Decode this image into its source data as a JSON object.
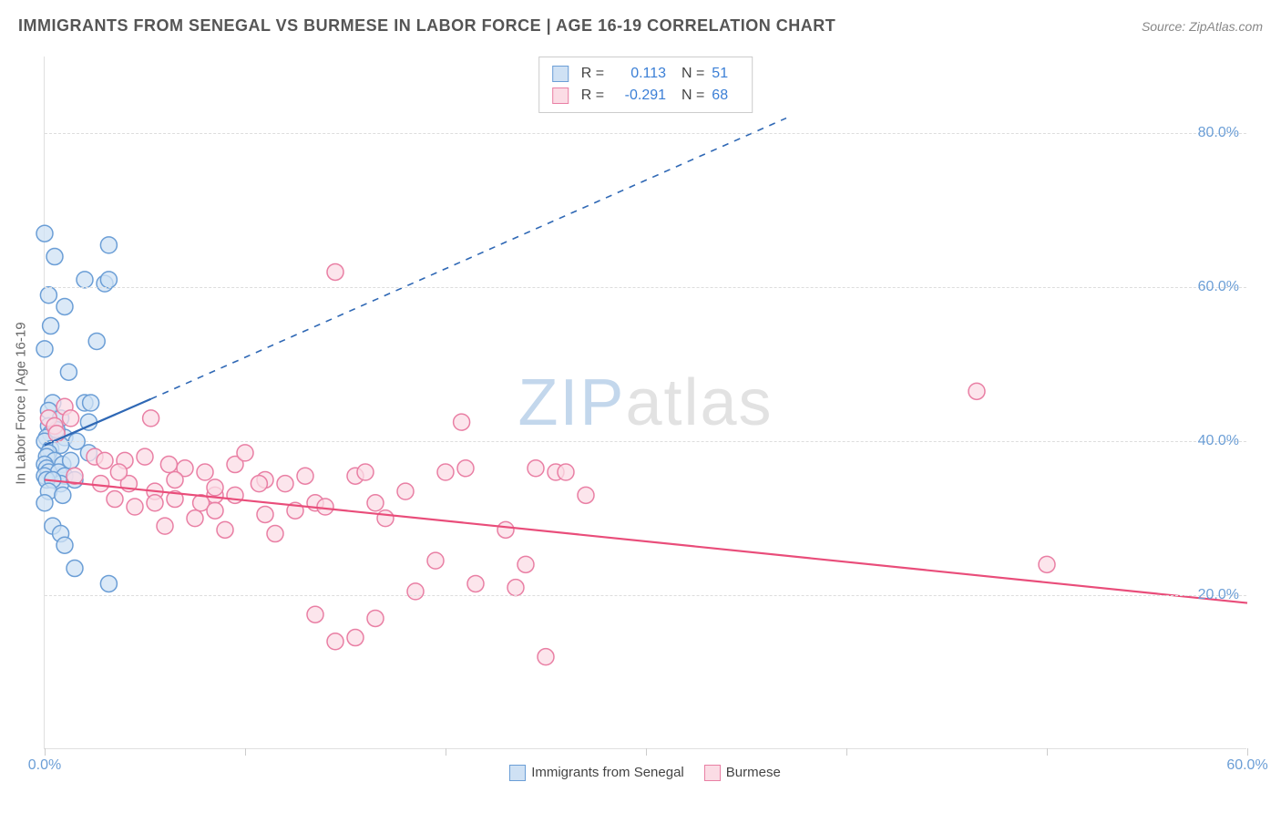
{
  "title": "IMMIGRANTS FROM SENEGAL VS BURMESE IN LABOR FORCE | AGE 16-19 CORRELATION CHART",
  "source": "Source: ZipAtlas.com",
  "ylabel": "In Labor Force | Age 16-19",
  "watermark": {
    "zip": "ZIP",
    "atlas": "atlas"
  },
  "chart": {
    "type": "scatter",
    "xlim": [
      0,
      60
    ],
    "ylim": [
      0,
      90
    ],
    "yticks": [
      20,
      40,
      60,
      80
    ],
    "ytick_labels": [
      "20.0%",
      "40.0%",
      "60.0%",
      "80.0%"
    ],
    "xticks": [
      0,
      10,
      20,
      30,
      40,
      50,
      60
    ],
    "xtick_labels": [
      "0.0%",
      "",
      "",
      "",
      "",
      "",
      "60.0%"
    ],
    "grid_color": "#dddddd",
    "axis_color": "#e0e0e0",
    "background_color": "#ffffff",
    "marker_radius": 9,
    "marker_stroke_width": 1.5,
    "series": [
      {
        "name": "Immigrants from Senegal",
        "fill_color": "#cfe1f4",
        "stroke_color": "#6b9ed6",
        "line_color": "#2f68b5",
        "line_width": 2.2,
        "R": "0.113",
        "N": "51",
        "regression": {
          "x1": 0,
          "y1": 39.5,
          "x2": 5.3,
          "y2": 45.5,
          "ext_x2": 37,
          "ext_y2": 82
        },
        "points": [
          [
            0.0,
            67.0
          ],
          [
            0.5,
            64.0
          ],
          [
            3.2,
            65.5
          ],
          [
            2.0,
            61.0
          ],
          [
            3.0,
            60.5
          ],
          [
            0.2,
            59.0
          ],
          [
            1.0,
            57.5
          ],
          [
            3.2,
            61.0
          ],
          [
            0.3,
            55.0
          ],
          [
            0.0,
            52.0
          ],
          [
            2.6,
            53.0
          ],
          [
            1.2,
            49.0
          ],
          [
            2.0,
            45.0
          ],
          [
            0.4,
            45.0
          ],
          [
            2.3,
            45.0
          ],
          [
            0.2,
            44.0
          ],
          [
            2.2,
            42.5
          ],
          [
            0.8,
            43.0
          ],
          [
            0.2,
            42.0
          ],
          [
            0.3,
            41.0
          ],
          [
            0.1,
            40.5
          ],
          [
            1.0,
            40.5
          ],
          [
            0.0,
            40.0
          ],
          [
            0.6,
            41.5
          ],
          [
            1.6,
            40.0
          ],
          [
            0.3,
            39.0
          ],
          [
            0.8,
            39.5
          ],
          [
            0.2,
            38.5
          ],
          [
            2.2,
            38.5
          ],
          [
            0.1,
            38.0
          ],
          [
            0.5,
            37.5
          ],
          [
            0.0,
            37.0
          ],
          [
            0.9,
            37.0
          ],
          [
            0.1,
            36.5
          ],
          [
            1.3,
            37.5
          ],
          [
            0.2,
            36.0
          ],
          [
            0.7,
            36.0
          ],
          [
            0.0,
            35.5
          ],
          [
            1.0,
            35.5
          ],
          [
            0.8,
            34.5
          ],
          [
            0.1,
            35.0
          ],
          [
            0.4,
            35.0
          ],
          [
            1.5,
            35.0
          ],
          [
            0.2,
            33.5
          ],
          [
            0.9,
            33.0
          ],
          [
            0.0,
            32.0
          ],
          [
            0.4,
            29.0
          ],
          [
            0.8,
            28.0
          ],
          [
            1.0,
            26.5
          ],
          [
            1.5,
            23.5
          ],
          [
            3.2,
            21.5
          ]
        ]
      },
      {
        "name": "Burmese",
        "fill_color": "#fbdce5",
        "stroke_color": "#e97fa4",
        "line_color": "#e94d7a",
        "line_width": 2.2,
        "R": "-0.291",
        "N": "68",
        "regression": {
          "x1": 0,
          "y1": 35,
          "x2": 60,
          "y2": 19
        },
        "points": [
          [
            14.5,
            62.0
          ],
          [
            46.5,
            46.5
          ],
          [
            50.0,
            24.0
          ],
          [
            1.0,
            44.5
          ],
          [
            0.2,
            43.0
          ],
          [
            0.5,
            42.0
          ],
          [
            1.3,
            43.0
          ],
          [
            0.6,
            41.0
          ],
          [
            2.5,
            38.0
          ],
          [
            3.0,
            37.5
          ],
          [
            4.0,
            37.5
          ],
          [
            5.0,
            38.0
          ],
          [
            5.3,
            43.0
          ],
          [
            20.8,
            42.5
          ],
          [
            24.5,
            36.5
          ],
          [
            6.2,
            37.0
          ],
          [
            7.0,
            36.5
          ],
          [
            8.0,
            36.0
          ],
          [
            9.5,
            37.0
          ],
          [
            10.0,
            38.5
          ],
          [
            11.0,
            35.0
          ],
          [
            2.8,
            34.5
          ],
          [
            4.2,
            34.5
          ],
          [
            5.5,
            33.5
          ],
          [
            6.5,
            35.0
          ],
          [
            20.0,
            36.0
          ],
          [
            21.0,
            36.5
          ],
          [
            8.5,
            33.0
          ],
          [
            3.5,
            32.5
          ],
          [
            4.5,
            31.5
          ],
          [
            5.5,
            32.0
          ],
          [
            6.5,
            32.5
          ],
          [
            7.8,
            32.0
          ],
          [
            10.7,
            34.5
          ],
          [
            12.0,
            34.5
          ],
          [
            13.0,
            35.5
          ],
          [
            13.5,
            32.0
          ],
          [
            15.5,
            35.5
          ],
          [
            16.5,
            32.0
          ],
          [
            14.0,
            31.5
          ],
          [
            11.0,
            30.5
          ],
          [
            16.0,
            36.0
          ],
          [
            25.5,
            36.0
          ],
          [
            6.0,
            29.0
          ],
          [
            7.5,
            30.0
          ],
          [
            18.0,
            33.5
          ],
          [
            27.0,
            33.0
          ],
          [
            9.0,
            28.5
          ],
          [
            11.5,
            28.0
          ],
          [
            23.0,
            28.5
          ],
          [
            8.5,
            31.0
          ],
          [
            24.0,
            24.0
          ],
          [
            19.5,
            24.5
          ],
          [
            23.5,
            21.0
          ],
          [
            21.5,
            21.5
          ],
          [
            13.5,
            17.5
          ],
          [
            16.5,
            17.0
          ],
          [
            18.5,
            20.5
          ],
          [
            14.5,
            14.0
          ],
          [
            15.5,
            14.5
          ],
          [
            25.0,
            12.0
          ],
          [
            1.5,
            35.5
          ],
          [
            3.7,
            36.0
          ],
          [
            8.5,
            34.0
          ],
          [
            9.5,
            33.0
          ],
          [
            12.5,
            31.0
          ],
          [
            17.0,
            30.0
          ],
          [
            26.0,
            36.0
          ]
        ]
      }
    ]
  },
  "legend_bottom": [
    {
      "label": "Immigrants from Senegal",
      "fill": "#cfe1f4",
      "stroke": "#6b9ed6"
    },
    {
      "label": "Burmese",
      "fill": "#fbdce5",
      "stroke": "#e97fa4"
    }
  ],
  "tick_label_color": "#6b9ed6",
  "tick_label_fontsize": 16
}
